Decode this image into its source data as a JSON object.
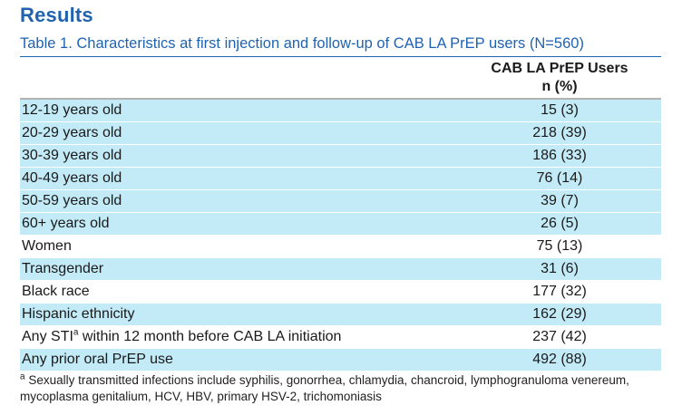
{
  "heading": "Results",
  "caption": "Table 1. Characteristics at first injection and follow-up of CAB LA PrEP users (N=560)",
  "table": {
    "column_header_line1": "CAB LA PrEP Users",
    "column_header_line2": "n (%)",
    "rows": [
      {
        "label": "12-19 years old",
        "value": "15 (3)",
        "shaded": true
      },
      {
        "label": "20-29 years old",
        "value": "218 (39)",
        "shaded": true
      },
      {
        "label": "30-39 years old",
        "value": "186 (33)",
        "shaded": true
      },
      {
        "label": "40-49 years old",
        "value": "76 (14)",
        "shaded": true
      },
      {
        "label": "50-59 years old",
        "value": "39 (7)",
        "shaded": true
      },
      {
        "label": "60+ years old",
        "value": "26 (5)",
        "shaded": true
      },
      {
        "label": "Women",
        "value": "75 (13)",
        "shaded": false
      },
      {
        "label": "Transgender",
        "value": "31 (6)",
        "shaded": true
      },
      {
        "label": "Black race",
        "value": "177 (32)",
        "shaded": false
      },
      {
        "label": "Hispanic ethnicity",
        "value": "162 (29)",
        "shaded": true
      },
      {
        "label_pre": "Any STI",
        "label_sup": "a",
        "label_post": " within 12 month before CAB LA initiation",
        "value": "237 (42)",
        "shaded": false
      },
      {
        "label": "Any prior oral PrEP use",
        "value": "492 (88)",
        "shaded": true
      }
    ]
  },
  "footnote": {
    "marker": "a",
    "text": " Sexually transmitted infections include syphilis, gonorrhea, chlamydia, chancroid, lymphogranuloma venereum, mycoplasma genitalium, HCV, HBV, primary HSV-2, trichomoniasis"
  },
  "colors": {
    "accent": "#1f63b0",
    "row_shade": "#c3ebf7"
  }
}
